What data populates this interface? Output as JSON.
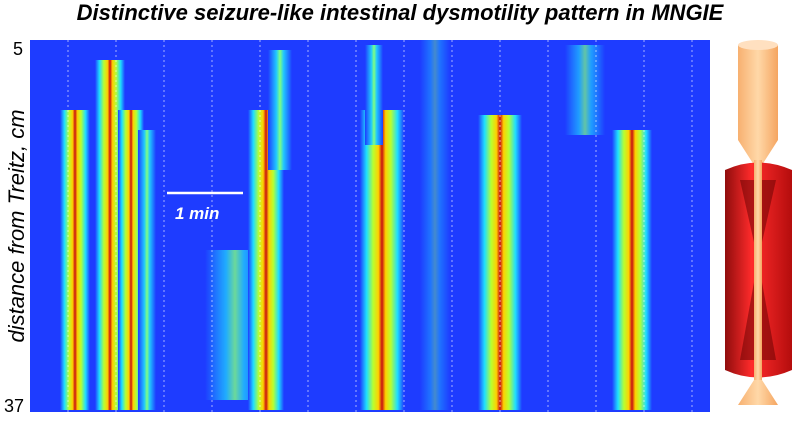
{
  "title": "Distinctive seizure-like intestinal dysmotility pattern in MNGIE",
  "y_axis": {
    "label": "distance from Treitz, cm",
    "ticks": [
      5,
      37
    ]
  },
  "scale_bar": {
    "label": "1 min"
  }
}
